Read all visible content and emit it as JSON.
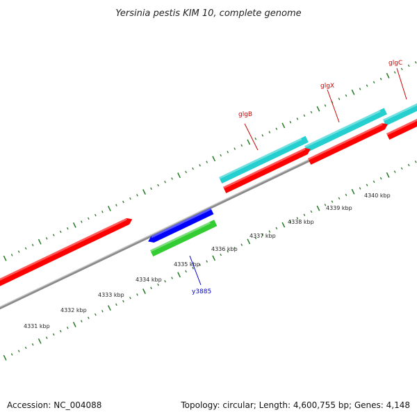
{
  "title": "Yersinia pestis KIM 10, complete genome",
  "footer": {
    "accession": "Accession: NC_004088",
    "summary": "Topology: circular; Length: 4,600,755 bp; Genes: 4,148"
  },
  "colors": {
    "backbone": "#888888",
    "tick": "#2e7d2e",
    "forward_cds": "#ff0000",
    "reverse_cds": "#0000ff",
    "gene_cyan": "#26cfcf",
    "gene_green": "#33cc33",
    "label_red": "#cc0000",
    "label_blue": "#0000cc"
  },
  "tick_labels": [
    "4331 kbp",
    "4332 kbp",
    "4333 kbp",
    "4334 kbp",
    "4335 kbp",
    "4336 kbp",
    "4337 kbp",
    "4338 kbp",
    "4339 kbp",
    "4340 kbp"
  ],
  "gene_labels": [
    {
      "name": "glgB",
      "color": "#cc0000"
    },
    {
      "name": "glgX",
      "color": "#cc0000"
    },
    {
      "name": "glgC",
      "color": "#cc0000"
    },
    {
      "name": "y3885",
      "color": "#0000cc"
    }
  ]
}
